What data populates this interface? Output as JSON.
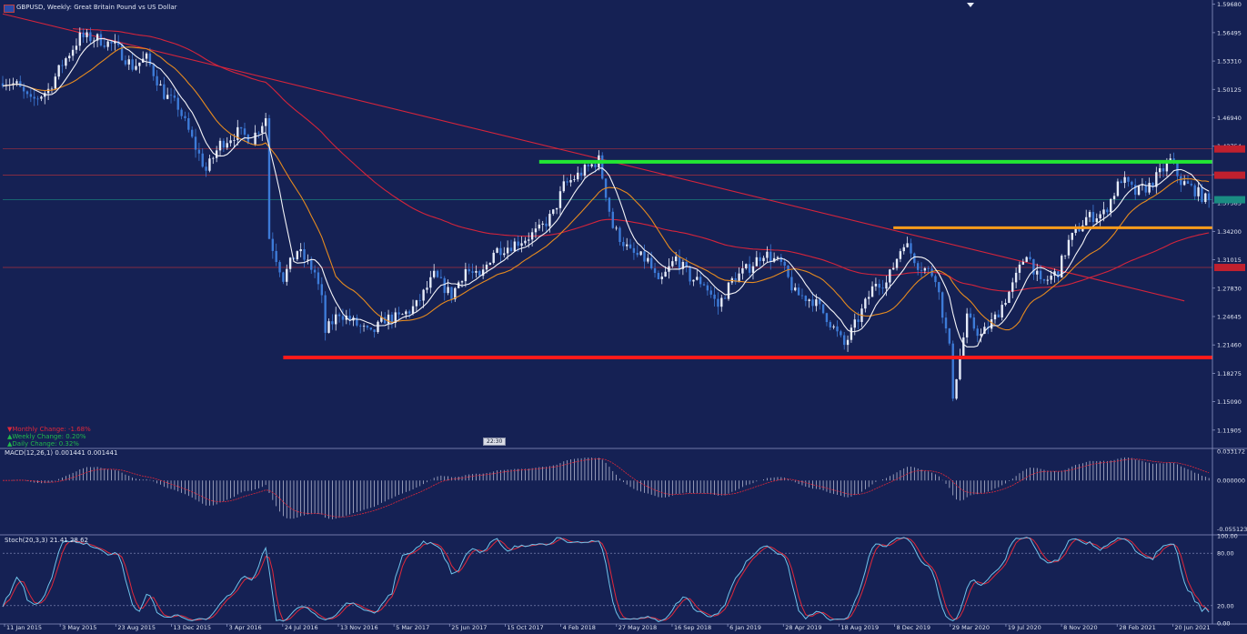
{
  "title": "GBPUSD, Weekly: Great Britain Pound vs US Dollar",
  "changes": {
    "monthly": "Monthly Change: -1.68%",
    "weekly": "Weekly Change: 0.20%",
    "daily": "Daily Change: 0.32%"
  },
  "clock": "22:30",
  "macd_label": "MACD(12,26,1) 0.001441 0.001441",
  "stoch_label": "Stoch(20,3,3) 21.41 28.62",
  "colors": {
    "background": "#152154",
    "grid_line": "#3b4a86",
    "candle_bull": "#e6ecfa",
    "candle_bear": "#3d7bd8",
    "ma_fast": "#f4f4f8",
    "ma_mid": "#e58a1f",
    "ma_slow": "#d4243b",
    "support": "#ff1a1a",
    "resistance": "#22e633",
    "mid_level": "#ff9c1a",
    "current_price_tag": "#1a8c82",
    "stoch_main": "#6fc3ea",
    "stoch_signal": "#e0283a",
    "macd_hist": "#c8cce0"
  },
  "chart_data": [
    {
      "type": "candlestick",
      "symbol": "GBPUSD",
      "timeframe": "Weekly",
      "title": "GBPUSD, Weekly: Great Britain Pound vs US Dollar",
      "x_ticks": [
        "11 Jan 2015",
        "3 May 2015",
        "23 Aug 2015",
        "13 Dec 2015",
        "3 Apr 2016",
        "24 Jul 2016",
        "13 Nov 2016",
        "5 Mar 2017",
        "25 Jun 2017",
        "15 Oct 2017",
        "4 Feb 2018",
        "27 May 2018",
        "16 Sep 2018",
        "6 Jan 2019",
        "28 Apr 2019",
        "18 Aug 2019",
        "8 Dec 2019",
        "29 Mar 2020",
        "19 Jul 2020",
        "8 Nov 2020",
        "28 Feb 2021",
        "20 Jun 2021"
      ],
      "y_ticks": [
        "1.59680",
        "1.56495",
        "1.53310",
        "1.50125",
        "1.46940",
        "1.43754",
        "1.40570",
        "1.37385",
        "1.34200",
        "1.31015",
        "1.27830",
        "1.24645",
        "1.21460",
        "1.18275",
        "1.15090",
        "1.11905"
      ],
      "ylim": [
        1.1005,
        1.5985
      ],
      "close_anchor_dates": [
        "2015-01-11",
        "2015-02-08",
        "2015-03-08",
        "2015-04-12",
        "2015-05-10",
        "2015-06-14",
        "2015-07-19",
        "2015-08-23",
        "2015-09-27",
        "2015-10-25",
        "2015-11-29",
        "2015-12-27",
        "2016-01-24",
        "2016-02-21",
        "2016-03-20",
        "2016-04-24",
        "2016-05-22",
        "2016-06-19",
        "2016-06-26",
        "2016-07-24",
        "2016-08-21",
        "2016-09-25",
        "2016-10-09",
        "2016-10-16",
        "2016-11-13",
        "2016-12-11",
        "2017-01-15",
        "2017-02-12",
        "2017-03-12",
        "2017-04-16",
        "2017-05-21",
        "2017-06-25",
        "2017-07-23",
        "2017-08-20",
        "2017-09-17",
        "2017-10-15",
        "2017-11-19",
        "2017-12-17",
        "2018-01-14",
        "2018-02-04",
        "2018-03-04",
        "2018-04-15",
        "2018-05-13",
        "2018-06-17",
        "2018-07-22",
        "2018-08-12",
        "2018-09-16",
        "2018-10-14",
        "2018-11-11",
        "2018-12-09",
        "2019-01-06",
        "2019-02-10",
        "2019-03-10",
        "2019-04-14",
        "2019-05-12",
        "2019-06-16",
        "2019-07-14",
        "2019-08-18",
        "2019-09-15",
        "2019-10-20",
        "2019-11-10",
        "2019-12-15",
        "2020-01-12",
        "2020-02-16",
        "2020-03-15",
        "2020-03-22",
        "2020-04-19",
        "2020-05-17",
        "2020-06-14",
        "2020-07-19",
        "2020-08-16",
        "2020-09-13",
        "2020-10-18",
        "2020-11-08",
        "2020-12-13",
        "2021-01-17",
        "2021-02-21",
        "2021-03-21",
        "2021-04-18",
        "2021-05-30",
        "2021-06-20",
        "2021-07-18",
        "2021-08-15"
      ],
      "close_anchor_values": [
        1.512,
        1.506,
        1.487,
        1.501,
        1.53,
        1.56,
        1.558,
        1.55,
        1.527,
        1.536,
        1.496,
        1.482,
        1.445,
        1.41,
        1.44,
        1.453,
        1.445,
        1.47,
        1.335,
        1.29,
        1.321,
        1.296,
        1.265,
        1.229,
        1.251,
        1.24,
        1.226,
        1.244,
        1.245,
        1.259,
        1.292,
        1.27,
        1.3,
        1.288,
        1.32,
        1.325,
        1.334,
        1.343,
        1.362,
        1.393,
        1.405,
        1.422,
        1.347,
        1.318,
        1.309,
        1.282,
        1.312,
        1.29,
        1.284,
        1.258,
        1.287,
        1.302,
        1.318,
        1.305,
        1.272,
        1.265,
        1.246,
        1.214,
        1.244,
        1.286,
        1.284,
        1.331,
        1.305,
        1.292,
        1.21,
        1.159,
        1.244,
        1.225,
        1.245,
        1.281,
        1.319,
        1.282,
        1.297,
        1.33,
        1.357,
        1.362,
        1.401,
        1.385,
        1.393,
        1.421,
        1.398,
        1.388,
        1.375
      ],
      "horizontal_levels": [
        {
          "label": "support",
          "price": 1.2005,
          "from": "2016-07-24",
          "to": "2021-08-15"
        },
        {
          "label": "resistance",
          "price": 1.42,
          "from": "2017-12-17",
          "to": "2021-08-15"
        },
        {
          "label": "mid_level",
          "price": 1.346,
          "from": "2019-11-24",
          "to": "2021-08-15"
        }
      ],
      "reference_lines": [
        1.4345,
        1.405,
        1.3015
      ],
      "current_price_line": 1.3775,
      "moving_averages": [
        {
          "name": "fast",
          "color": "#f4f4f8"
        },
        {
          "name": "mid",
          "color": "#e58a1f"
        },
        {
          "name": "slow",
          "color": "#d4243b"
        }
      ],
      "trendline": {
        "from_date": "2015-01-11",
        "from_price": 1.586,
        "to_date": "2021-06-27",
        "to_price": 1.264
      }
    },
    {
      "type": "bar",
      "indicator": "MACD(12,26,1)",
      "value": 0.001441,
      "y_ticks": [
        "0.033172",
        "0.000000",
        "-0.055123"
      ],
      "ylim": [
        -0.06,
        0.0355
      ]
    },
    {
      "type": "line",
      "indicator": "Stoch(20,3,3)",
      "main": 21.41,
      "signal": 28.62,
      "y_ticks": [
        "100.00",
        "80.00",
        "20.00",
        "0.00"
      ],
      "levels": [
        80,
        20
      ],
      "ylim": [
        0,
        100
      ]
    }
  ]
}
